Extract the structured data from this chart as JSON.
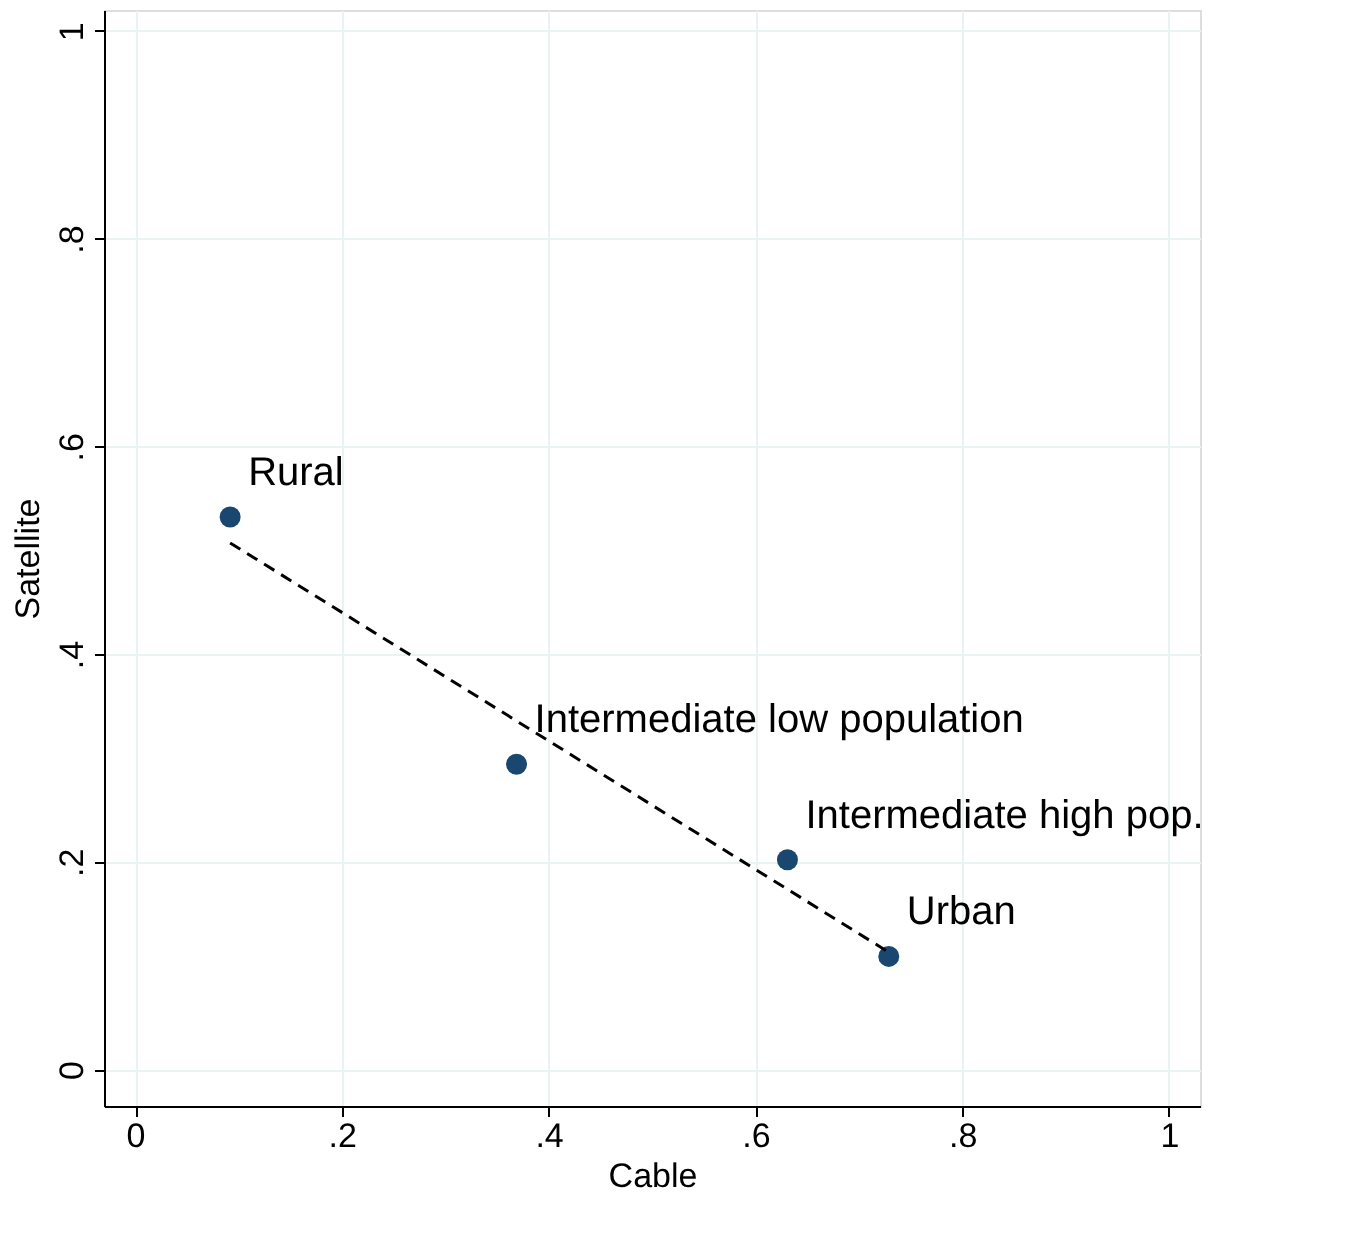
{
  "chart_data": {
    "type": "scatter",
    "xlabel": "Cable",
    "ylabel": "Satellite",
    "xlim": [
      -0.03,
      1.03
    ],
    "ylim": [
      -0.035,
      1.02
    ],
    "xticks": [
      0,
      {
        "value": 0.2,
        "label": ".2"
      },
      {
        "value": 0.4,
        "label": ".4"
      },
      {
        "value": 0.6,
        "label": ".6"
      },
      {
        "value": 0.8,
        "label": ".8"
      },
      1
    ],
    "yticks": [
      0,
      {
        "value": 0.2,
        "label": ".2"
      },
      {
        "value": 0.4,
        "label": ".4"
      },
      {
        "value": 0.6,
        "label": ".6"
      },
      {
        "value": 0.8,
        "label": ".8"
      },
      1
    ],
    "grid": true,
    "marker": "circle",
    "series": [
      {
        "color": "#1a476f",
        "x": [
          0.092,
          0.369,
          0.631,
          0.729
        ],
        "values": [
          0.532,
          0.294,
          0.202,
          0.109
        ]
      },
      {
        "type": "line",
        "color": "#000000",
        "line_style": "dashed",
        "marker": "none",
        "x": [
          0.092,
          0.729
        ],
        "values": [
          0.507,
          0.113
        ]
      }
    ],
    "annotations": [
      {
        "text": "Rural",
        "x": 0.092,
        "y": 0.532
      },
      {
        "text": "Intermediate low population",
        "x": 0.369,
        "y": 0.294
      },
      {
        "text": "Intermediate high pop.",
        "x": 0.631,
        "y": 0.202
      },
      {
        "text": "Urban",
        "x": 0.729,
        "y": 0.109
      }
    ]
  }
}
